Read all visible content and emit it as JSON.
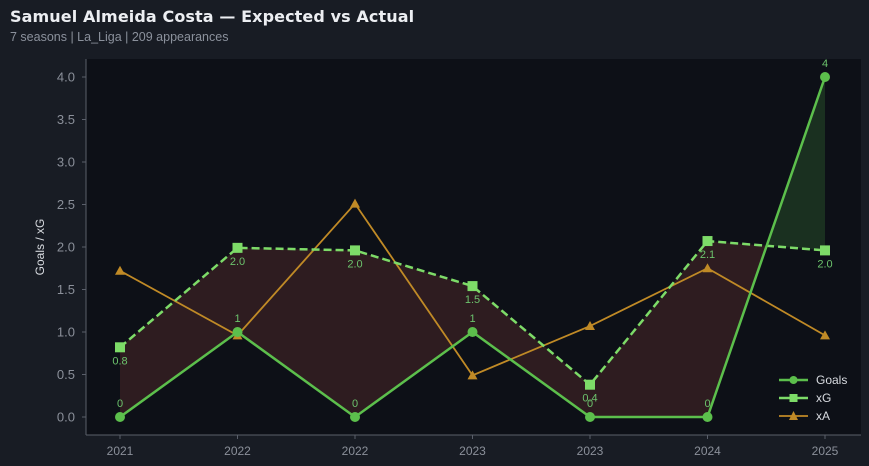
{
  "header": {
    "title": "Samuel Almeida Costa — Expected vs Actual",
    "subtitle": "7 seasons | La_Liga | 209 appearances"
  },
  "colors": {
    "background": "#181c24",
    "plot_bg": "#0d1017",
    "goals": "#5cbf4c",
    "xg": "#7ddb68",
    "xa": "#c08a26",
    "under_fill": "#2e1c20",
    "over_fill": "#1a3020"
  },
  "chart_data": {
    "type": "line",
    "title": "Samuel Almeida Costa — Expected vs Actual",
    "subtitle": "7 seasons | La_Liga | 209 appearances",
    "xlabel": "",
    "ylabel": "Goals / xG",
    "categories": [
      "2021",
      "2022",
      "2022",
      "2023",
      "2023",
      "2024",
      "2025"
    ],
    "ylim": [
      -0.2,
      4.2
    ],
    "yticks": [
      "0.0",
      "0.5",
      "1.0",
      "1.5",
      "2.0",
      "2.5",
      "3.0",
      "3.5",
      "4.0"
    ],
    "grid": false,
    "legend_position": "lower right",
    "series": [
      {
        "name": "Goals",
        "style": "solid",
        "marker": "circle",
        "values": [
          0,
          1,
          0,
          1,
          0,
          0,
          4
        ],
        "labels": [
          "0",
          "1",
          "0",
          "1",
          "0",
          "0",
          "4"
        ]
      },
      {
        "name": "xG",
        "style": "dashed",
        "marker": "square",
        "values": [
          0.82,
          1.99,
          1.96,
          1.54,
          0.38,
          2.07,
          1.96
        ],
        "labels": [
          "0.8",
          "2.0",
          "2.0",
          "1.5",
          "0.4",
          "2.1",
          "2.0"
        ]
      },
      {
        "name": "xA",
        "style": "solid",
        "marker": "triangle",
        "values": [
          1.72,
          0.96,
          2.51,
          0.49,
          1.07,
          1.75,
          0.96
        ]
      }
    ]
  }
}
